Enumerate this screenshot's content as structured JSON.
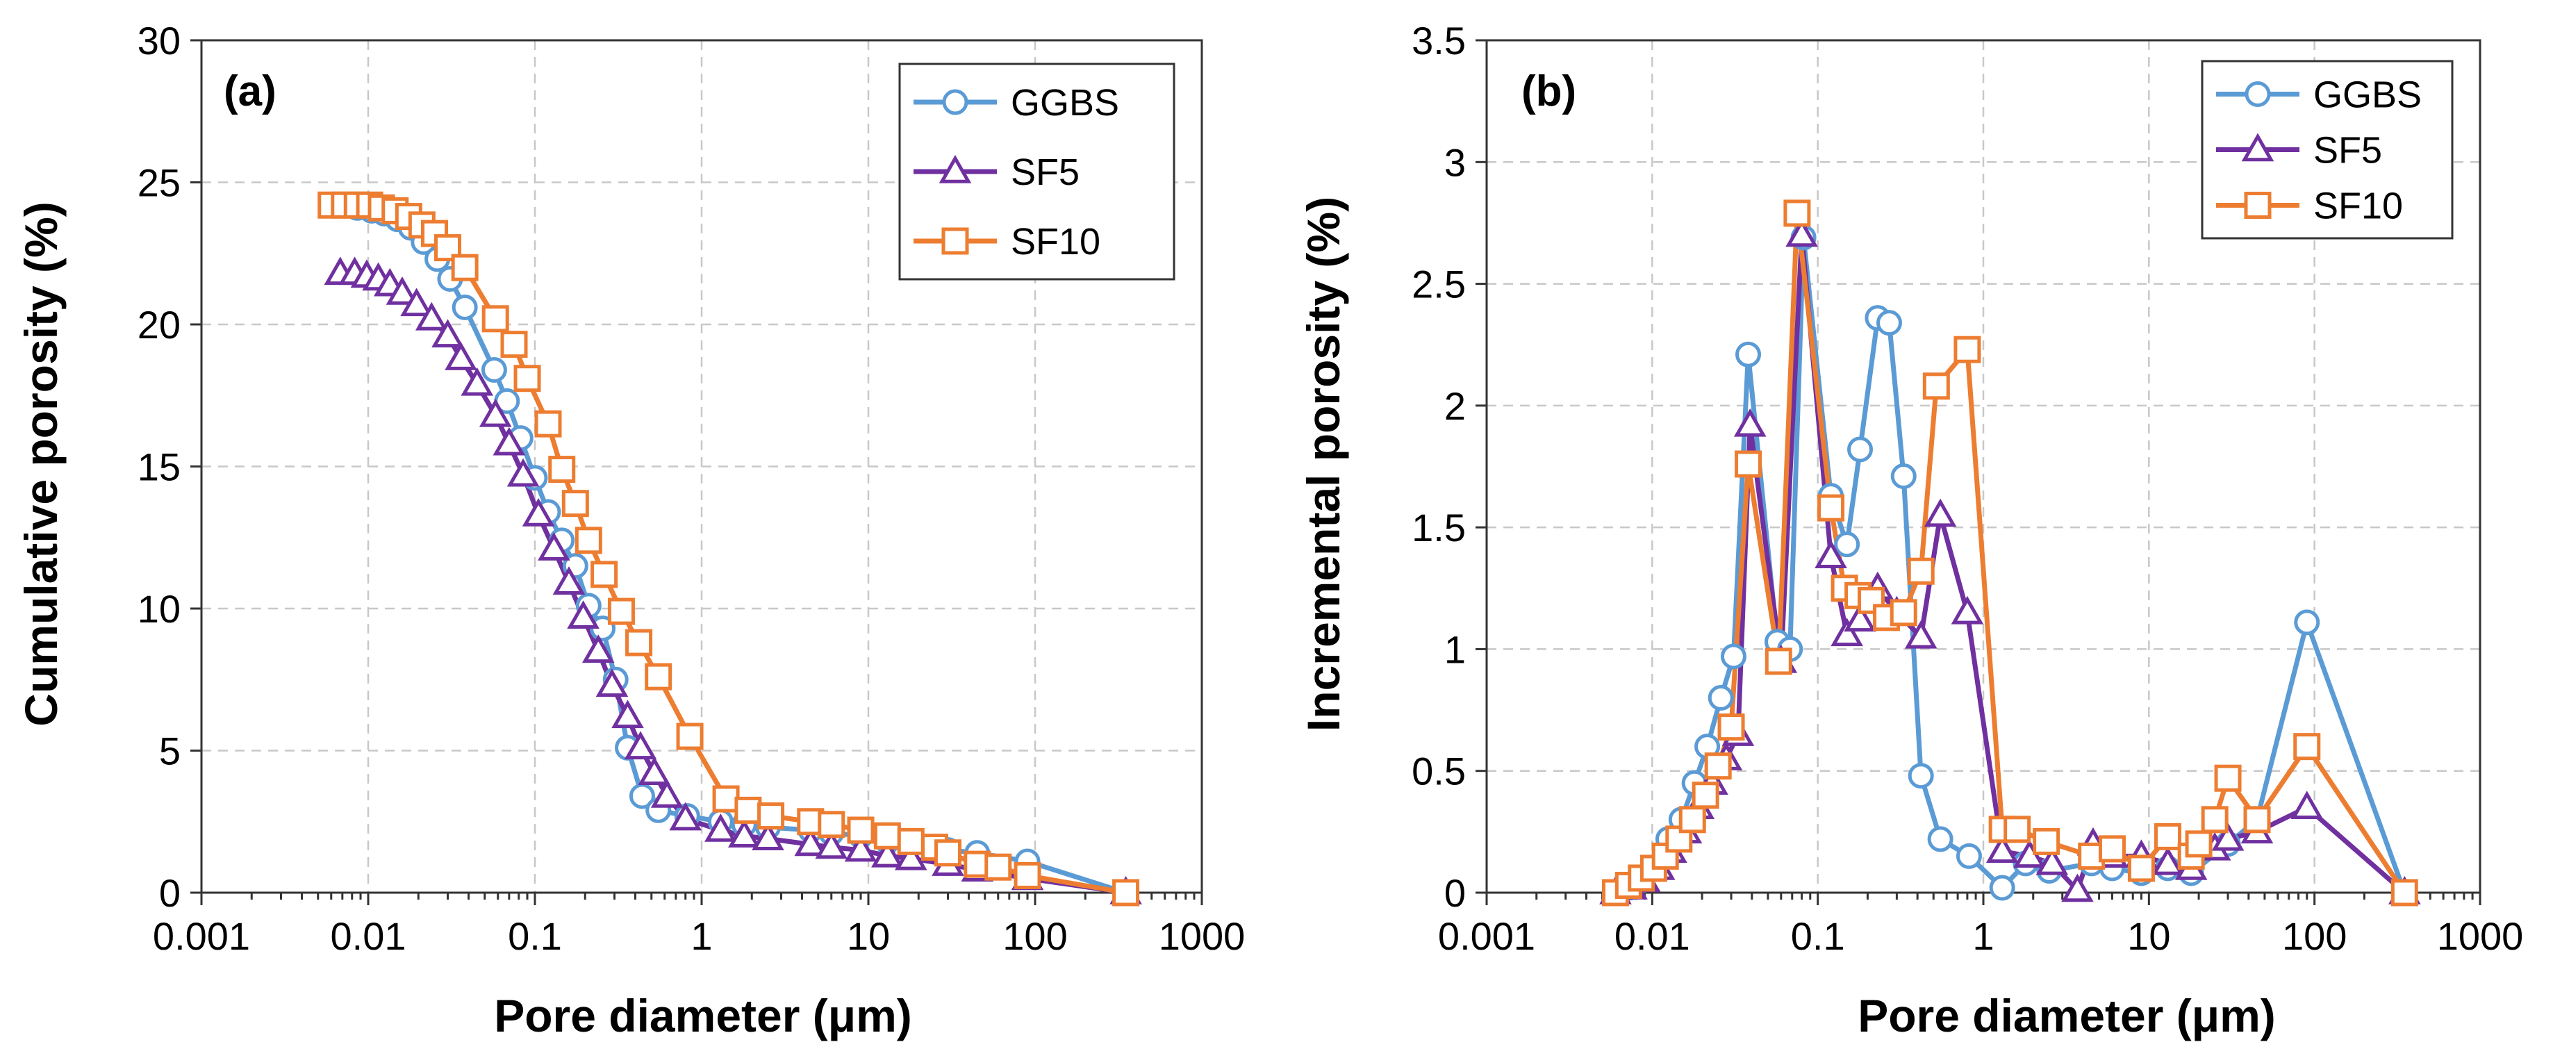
{
  "colors": {
    "GGBS": "#5b9bd5",
    "SF5": "#7030a0",
    "SF10": "#ed7d31"
  },
  "chart_data": [
    {
      "type": "scatter",
      "panel_label": "(a)",
      "xlabel": "Pore diameter (μm)",
      "ylabel": "Cumulative porosity (%)",
      "xscale": "log",
      "xlim": [
        0.001,
        1000
      ],
      "ylim": [
        0,
        30
      ],
      "xticks": [
        0.001,
        0.01,
        0.1,
        1,
        10,
        100,
        1000
      ],
      "xtick_labels": [
        "0.001",
        "0.01",
        "0.1",
        "1",
        "10",
        "100",
        "1000"
      ],
      "yticks": [
        0,
        5,
        10,
        15,
        20,
        25,
        30
      ],
      "ytick_labels": [
        "0",
        "5",
        "10",
        "15",
        "20",
        "25",
        "30"
      ],
      "grid": true,
      "legend_position": "top-right",
      "series": [
        {
          "name": "GGBS",
          "marker": "circle",
          "color": "#5b9bd5",
          "x": [
            0.006,
            0.0072,
            0.0086,
            0.0105,
            0.0125,
            0.015,
            0.018,
            0.0215,
            0.026,
            0.031,
            0.038,
            0.057,
            0.068,
            0.082,
            0.1,
            0.12,
            0.145,
            0.175,
            0.21,
            0.255,
            0.305,
            0.36,
            0.44,
            0.55,
            0.82,
            1.3,
            1.8,
            2.5,
            4.5,
            6,
            9,
            13,
            18,
            30,
            45,
            90,
            350
          ],
          "y": [
            24.2,
            24.2,
            24.1,
            24.0,
            23.9,
            23.7,
            23.4,
            22.9,
            22.3,
            21.6,
            20.6,
            18.4,
            17.3,
            16.0,
            14.6,
            13.4,
            12.4,
            11.5,
            10.1,
            9.3,
            7.5,
            5.1,
            3.4,
            2.9,
            2.7,
            2.5,
            2.4,
            2.3,
            2.2,
            2.1,
            2.0,
            1.8,
            1.7,
            1.5,
            1.4,
            1.1,
            0
          ]
        },
        {
          "name": "SF5",
          "marker": "triangle",
          "color": "#7030a0",
          "x": [
            0.0068,
            0.0083,
            0.0098,
            0.0115,
            0.0135,
            0.016,
            0.0195,
            0.024,
            0.03,
            0.036,
            0.045,
            0.058,
            0.07,
            0.085,
            0.105,
            0.13,
            0.16,
            0.195,
            0.24,
            0.29,
            0.36,
            0.43,
            0.52,
            0.62,
            0.8,
            1.3,
            1.8,
            2.5,
            4.5,
            6,
            9,
            13,
            18,
            30,
            45,
            90,
            350
          ],
          "y": [
            21.8,
            21.8,
            21.7,
            21.6,
            21.4,
            21.1,
            20.7,
            20.2,
            19.6,
            18.8,
            17.9,
            16.8,
            15.8,
            14.7,
            13.3,
            12.1,
            10.9,
            9.7,
            8.5,
            7.3,
            6.2,
            5.1,
            4.2,
            3.4,
            2.6,
            2.2,
            2.0,
            1.9,
            1.7,
            1.6,
            1.5,
            1.3,
            1.2,
            1.0,
            0.8,
            0.5,
            0
          ]
        },
        {
          "name": "SF10",
          "marker": "square",
          "color": "#ed7d31",
          "x": [
            0.006,
            0.0072,
            0.0086,
            0.0102,
            0.012,
            0.0145,
            0.0175,
            0.021,
            0.025,
            0.03,
            0.038,
            0.058,
            0.075,
            0.09,
            0.12,
            0.145,
            0.175,
            0.21,
            0.26,
            0.33,
            0.42,
            0.55,
            0.85,
            1.4,
            1.9,
            2.6,
            4.5,
            6,
            9,
            13,
            18,
            25,
            30,
            45,
            60,
            90,
            350
          ],
          "y": [
            24.2,
            24.2,
            24.2,
            24.2,
            24.1,
            24.0,
            23.8,
            23.5,
            23.2,
            22.7,
            22.0,
            20.2,
            19.3,
            18.1,
            16.5,
            14.9,
            13.7,
            12.4,
            11.2,
            9.9,
            8.8,
            7.6,
            5.5,
            3.3,
            2.9,
            2.7,
            2.5,
            2.4,
            2.2,
            2.0,
            1.8,
            1.6,
            1.4,
            1.0,
            0.9,
            0.6,
            0
          ]
        }
      ]
    },
    {
      "type": "scatter",
      "panel_label": "(b)",
      "xlabel": "Pore  diameter (μm)",
      "ylabel": "Incremental porosity (%)",
      "xscale": "log",
      "xlim": [
        0.001,
        1000
      ],
      "ylim": [
        0,
        3.5
      ],
      "xticks": [
        0.001,
        0.01,
        0.1,
        1,
        10,
        100,
        1000
      ],
      "xtick_labels": [
        "0.001",
        "0.01",
        "0.1",
        "1",
        "10",
        "100",
        "1000"
      ],
      "yticks": [
        0,
        0.5,
        1,
        1.5,
        2,
        2.5,
        3,
        3.5
      ],
      "ytick_labels": [
        "0",
        "0.5",
        "1",
        "1.5",
        "2",
        "2.5",
        "3",
        "3.5"
      ],
      "grid": true,
      "legend_position": "top-right",
      "series": [
        {
          "name": "GGBS",
          "marker": "circle",
          "color": "#5b9bd5",
          "x": [
            0.006,
            0.0072,
            0.0086,
            0.0105,
            0.0125,
            0.015,
            0.018,
            0.0215,
            0.026,
            0.031,
            0.038,
            0.057,
            0.068,
            0.082,
            0.12,
            0.15,
            0.18,
            0.23,
            0.27,
            0.33,
            0.42,
            0.55,
            0.82,
            1.3,
            1.8,
            2.5,
            4.5,
            6,
            9,
            13,
            18,
            30,
            45,
            90,
            350
          ],
          "y": [
            0,
            0.02,
            0.05,
            0.1,
            0.22,
            0.3,
            0.45,
            0.6,
            0.8,
            0.97,
            2.21,
            1.03,
            1.0,
            2.69,
            1.63,
            1.43,
            1.82,
            2.36,
            2.34,
            1.71,
            0.48,
            0.22,
            0.15,
            0.02,
            0.12,
            0.09,
            0.12,
            0.1,
            0.08,
            0.1,
            0.08,
            0.2,
            0.3,
            1.11,
            0
          ]
        },
        {
          "name": "SF5",
          "marker": "triangle",
          "color": "#7030a0",
          "x": [
            0.006,
            0.0075,
            0.009,
            0.011,
            0.013,
            0.016,
            0.019,
            0.023,
            0.028,
            0.033,
            0.039,
            0.06,
            0.08,
            0.12,
            0.15,
            0.18,
            0.23,
            0.3,
            0.42,
            0.55,
            0.8,
            1.3,
            1.9,
            2.6,
            3.7,
            4.6,
            6,
            9,
            13,
            18,
            25,
            30,
            45,
            90,
            350
          ],
          "y": [
            0,
            0.02,
            0.05,
            0.1,
            0.17,
            0.25,
            0.35,
            0.45,
            0.55,
            0.65,
            1.92,
            0.95,
            2.7,
            1.38,
            1.06,
            1.12,
            1.25,
            1.15,
            1.05,
            1.55,
            1.15,
            0.17,
            0.15,
            0.12,
            0.01,
            0.2,
            0.15,
            0.15,
            0.12,
            0.1,
            0.18,
            0.22,
            0.25,
            0.35,
            0
          ]
        },
        {
          "name": "SF10",
          "marker": "square",
          "color": "#ed7d31",
          "x": [
            0.006,
            0.0072,
            0.0086,
            0.0102,
            0.012,
            0.0145,
            0.0175,
            0.021,
            0.025,
            0.03,
            0.038,
            0.058,
            0.075,
            0.12,
            0.145,
            0.175,
            0.21,
            0.26,
            0.33,
            0.42,
            0.52,
            0.8,
            1.3,
            1.6,
            2.4,
            4.5,
            6,
            9,
            13,
            18,
            20,
            25,
            30,
            45,
            90,
            350
          ],
          "y": [
            0,
            0.03,
            0.06,
            0.1,
            0.15,
            0.22,
            0.3,
            0.4,
            0.52,
            0.68,
            1.76,
            0.95,
            2.79,
            1.58,
            1.25,
            1.22,
            1.2,
            1.13,
            1.15,
            1.32,
            2.08,
            2.23,
            0.26,
            0.26,
            0.21,
            0.15,
            0.18,
            0.1,
            0.23,
            0.15,
            0.2,
            0.3,
            0.47,
            0.3,
            0.6,
            0
          ]
        }
      ]
    }
  ]
}
